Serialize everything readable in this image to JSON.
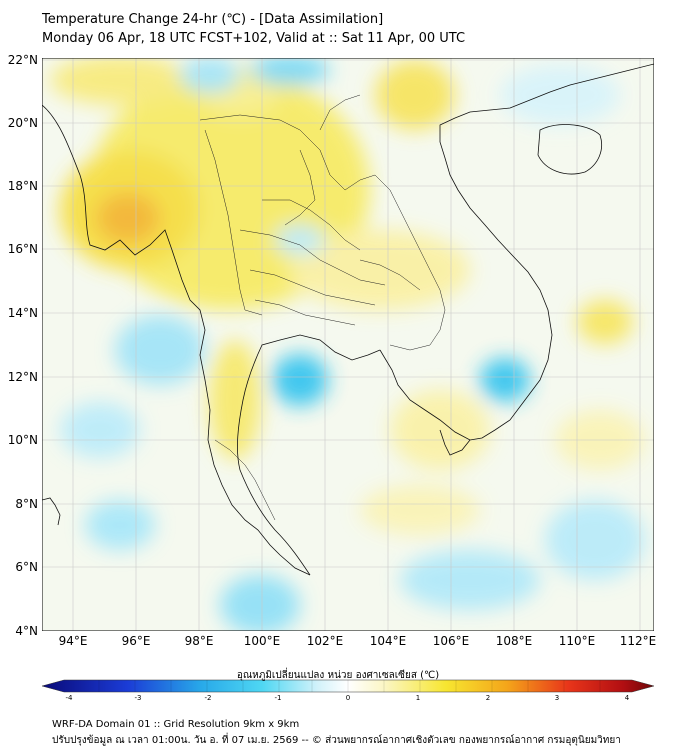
{
  "header": {
    "title_line1": "Temperature Change 24-hr (℃) - [Data Assimilation]",
    "title_line2": "Monday 06 Apr, 18 UTC FCST+102, Valid at :: Sat 11 Apr, 00 UTC"
  },
  "map": {
    "lat_labels": [
      "22°N",
      "20°N",
      "18°N",
      "16°N",
      "14°N",
      "12°N",
      "10°N",
      "8°N",
      "6°N",
      "4°N"
    ],
    "lon_labels": [
      "94°E",
      "96°E",
      "98°E",
      "100°E",
      "102°E",
      "104°E",
      "106°E",
      "108°E",
      "110°E",
      "112°E"
    ],
    "colors": {
      "warm": "#f6e21c",
      "warm_strong": "#f4a11a",
      "cool": "#2ec4ef",
      "border": "#000000",
      "grid": "#bfbfbf"
    }
  },
  "colorbar": {
    "label": "อุณหภูมิเปลี่ยนแปลง หน่วย องศาเซลเซียส (℃)",
    "ticks": [
      "-4",
      "-3",
      "-2",
      "-1",
      "0",
      "1",
      "2",
      "3",
      "4"
    ]
  },
  "footer": {
    "line1": "WRF-DA Domain 01 :: Grid Resolution 9km x 9km",
    "line2": "ปรับปรุงข้อมูล ณ เวลา 01:00น. วัน อ. ที่ 07 เม.ย. 2569 -- © ส่วนพยากรณ์อากาศเชิงตัวเลข กองพยากรณ์อากาศ กรมอุตุนิยมวิทยา"
  }
}
